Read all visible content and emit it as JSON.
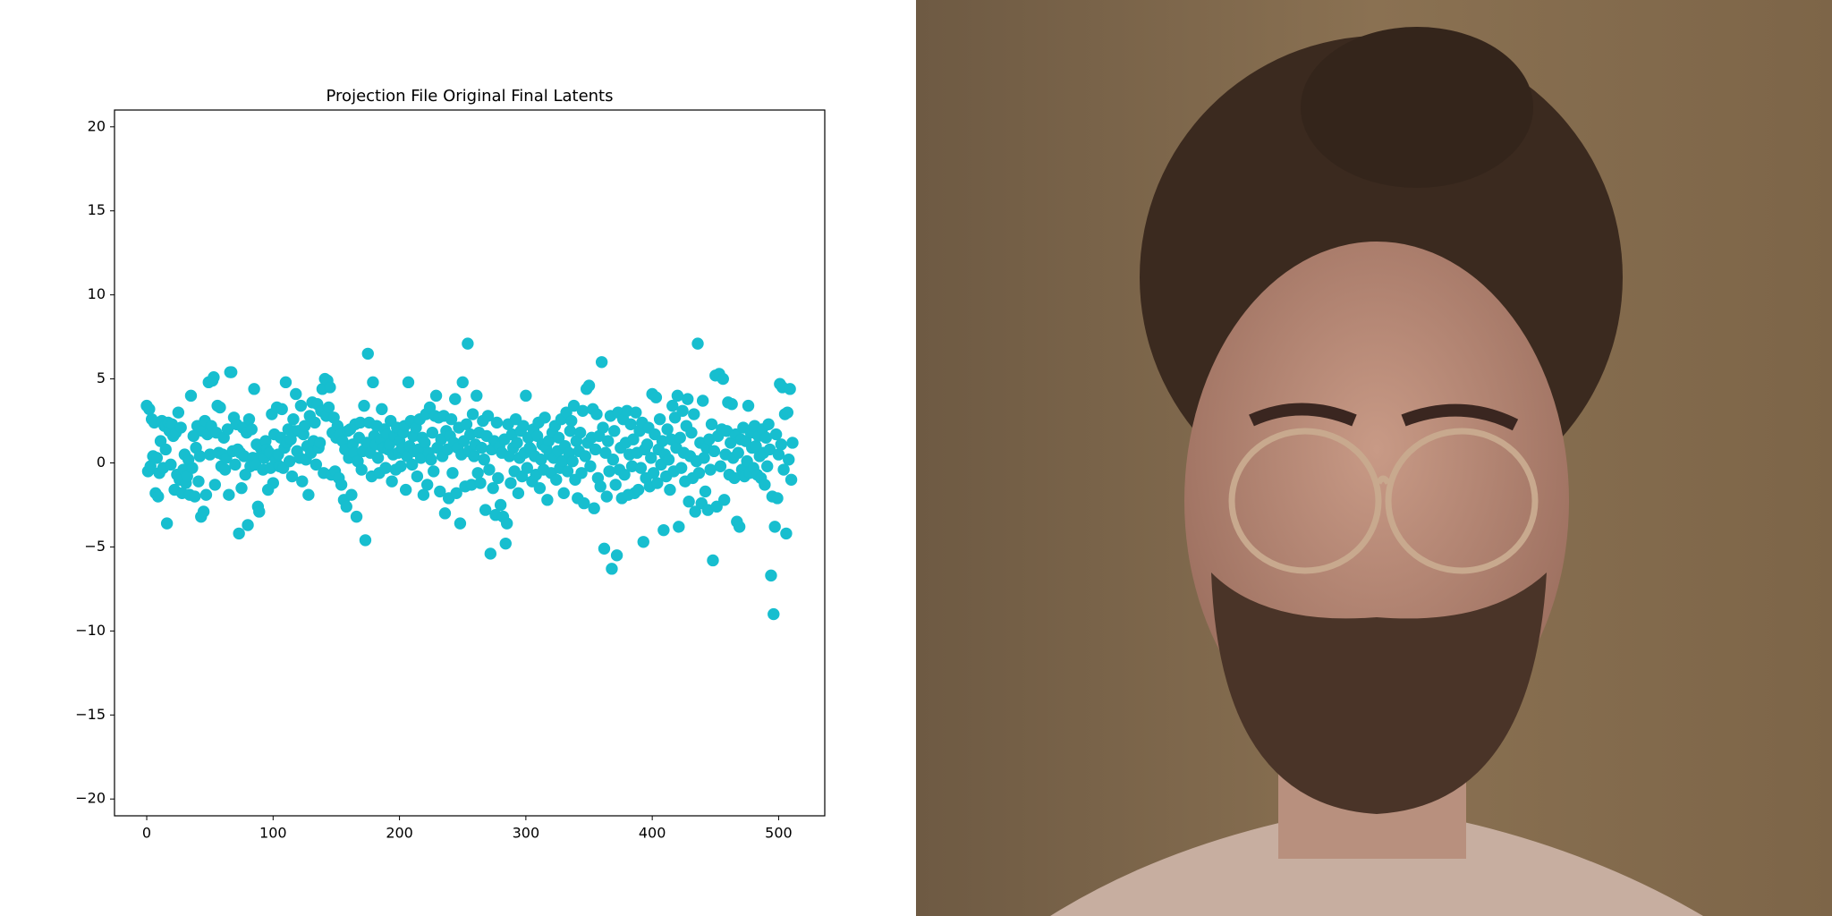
{
  "chart_data": {
    "type": "scatter",
    "title": "Projection File Original Final Latents",
    "color": "#17becf",
    "xlim": [
      -25.5,
      536.5
    ],
    "ylim": [
      -21,
      21
    ],
    "xticks": [
      0,
      100,
      200,
      300,
      400,
      500
    ],
    "yticks": [
      {
        "value": -20,
        "label": "−20"
      },
      {
        "value": -15,
        "label": "−15"
      },
      {
        "value": -10,
        "label": "−10"
      },
      {
        "value": -5,
        "label": "−5"
      },
      0,
      5,
      10,
      15,
      20
    ],
    "x": [
      0,
      1,
      2,
      3,
      4,
      5,
      6,
      7,
      8,
      9,
      10,
      11,
      12,
      13,
      14,
      15,
      16,
      17,
      18,
      19,
      20,
      21,
      22,
      23,
      24,
      25,
      26,
      27,
      28,
      29,
      30,
      31,
      32,
      33,
      34,
      35,
      36,
      37,
      38,
      39,
      40,
      41,
      42,
      43,
      44,
      45,
      46,
      47,
      48,
      49,
      50,
      51,
      52,
      53,
      54,
      55,
      56,
      57,
      58,
      59,
      60,
      61,
      62,
      63,
      64,
      65,
      66,
      67,
      68,
      69,
      70,
      71,
      72,
      73,
      74,
      75,
      76,
      77,
      78,
      79,
      80,
      81,
      82,
      83,
      84,
      85,
      86,
      87,
      88,
      89,
      90,
      91,
      92,
      93,
      94,
      95,
      96,
      97,
      98,
      99,
      100,
      101,
      102,
      103,
      104,
      105,
      106,
      107,
      108,
      109,
      110,
      111,
      112,
      113,
      114,
      115,
      116,
      117,
      118,
      119,
      120,
      121,
      122,
      123,
      124,
      125,
      126,
      127,
      128,
      129,
      130,
      131,
      132,
      133,
      134,
      135,
      136,
      137,
      138,
      139,
      140,
      141,
      142,
      143,
      144,
      145,
      146,
      147,
      148,
      149,
      150,
      151,
      152,
      153,
      154,
      155,
      156,
      157,
      158,
      159,
      160,
      161,
      162,
      163,
      164,
      165,
      166,
      167,
      168,
      169,
      170,
      171,
      172,
      173,
      174,
      175,
      176,
      177,
      178,
      179,
      180,
      181,
      182,
      183,
      184,
      185,
      186,
      187,
      188,
      189,
      190,
      191,
      192,
      193,
      194,
      195,
      196,
      197,
      198,
      199,
      200,
      201,
      202,
      203,
      204,
      205,
      206,
      207,
      208,
      209,
      210,
      211,
      212,
      213,
      214,
      215,
      216,
      217,
      218,
      219,
      220,
      221,
      222,
      223,
      224,
      225,
      226,
      227,
      228,
      229,
      230,
      231,
      232,
      233,
      234,
      235,
      236,
      237,
      238,
      239,
      240,
      241,
      242,
      243,
      244,
      245,
      246,
      247,
      248,
      249,
      250,
      251,
      252,
      253,
      254,
      255,
      256,
      257,
      258,
      259,
      260,
      261,
      262,
      263,
      264,
      265,
      266,
      267,
      268,
      269,
      270,
      271,
      272,
      273,
      274,
      275,
      276,
      277,
      278,
      279,
      280,
      281,
      282,
      283,
      284,
      285,
      286,
      287,
      288,
      289,
      290,
      291,
      292,
      293,
      294,
      295,
      296,
      297,
      298,
      299,
      300,
      301,
      302,
      303,
      304,
      305,
      306,
      307,
      308,
      309,
      310,
      311,
      312,
      313,
      314,
      315,
      316,
      317,
      318,
      319,
      320,
      321,
      322,
      323,
      324,
      325,
      326,
      327,
      328,
      329,
      330,
      331,
      332,
      333,
      334,
      335,
      336,
      337,
      338,
      339,
      340,
      341,
      342,
      343,
      344,
      345,
      346,
      347,
      348,
      349,
      350,
      351,
      352,
      353,
      354,
      355,
      356,
      357,
      358,
      359,
      360,
      361,
      362,
      363,
      364,
      365,
      366,
      367,
      368,
      369,
      370,
      371,
      372,
      373,
      374,
      375,
      376,
      377,
      378,
      379,
      380,
      381,
      382,
      383,
      384,
      385,
      386,
      387,
      388,
      389,
      390,
      391,
      392,
      393,
      394,
      395,
      396,
      397,
      398,
      399,
      400,
      401,
      402,
      403,
      404,
      405,
      406,
      407,
      408,
      409,
      410,
      411,
      412,
      413,
      414,
      415,
      416,
      417,
      418,
      419,
      420,
      421,
      422,
      423,
      424,
      425,
      426,
      427,
      428,
      429,
      430,
      431,
      432,
      433,
      434,
      435,
      436,
      437,
      438,
      439,
      440,
      441,
      442,
      443,
      444,
      445,
      446,
      447,
      448,
      449,
      450,
      451,
      452,
      453,
      454,
      455,
      456,
      457,
      458,
      459,
      460,
      461,
      462,
      463,
      464,
      465,
      466,
      467,
      468,
      469,
      470,
      471,
      472,
      473,
      474,
      475,
      476,
      477,
      478,
      479,
      480,
      481,
      482,
      483,
      484,
      485,
      486,
      487,
      488,
      489,
      490,
      491,
      492,
      493,
      494,
      495,
      496,
      497,
      498,
      499,
      500,
      501,
      502,
      503,
      504,
      505,
      506,
      507,
      508,
      509,
      510,
      511
    ],
    "values": [
      3.4,
      -0.5,
      3.2,
      -0.2,
      2.6,
      0.4,
      2.4,
      -1.8,
      0.3,
      -2.0,
      -0.6,
      1.3,
      2.5,
      -0.3,
      2.2,
      0.8,
      -3.6,
      2.4,
      1.9,
      -0.1,
      2.3,
      1.6,
      -1.6,
      1.8,
      -0.7,
      3.0,
      -1.0,
      2.1,
      -1.8,
      -0.4,
      0.5,
      -1.2,
      -0.8,
      0.2,
      -1.9,
      4.0,
      -0.3,
      1.6,
      -2.0,
      0.9,
      2.2,
      -1.1,
      0.4,
      -3.2,
      1.9,
      -2.9,
      2.5,
      -1.9,
      1.7,
      4.8,
      0.5,
      2.2,
      4.9,
      5.1,
      -1.3,
      1.8,
      3.4,
      0.6,
      3.3,
      -0.2,
      0.5,
      1.5,
      -0.4,
      0.3,
      2.0,
      -1.9,
      5.4,
      5.4,
      0.7,
      2.7,
      -0.1,
      2.3,
      0.8,
      -4.2,
      0.6,
      -1.5,
      2.1,
      0.4,
      -0.7,
      1.8,
      -3.7,
      2.6,
      -0.2,
      2.0,
      0.3,
      4.4,
      -0.1,
      1.1,
      -2.6,
      -2.9,
      0.9,
      0.5,
      -0.4,
      0.3,
      1.3,
      0.8,
      -1.6,
      0.6,
      -0.3,
      2.9,
      -1.2,
      1.7,
      0.2,
      3.3,
      0.5,
      -0.2,
      1.5,
      3.2,
      -0.3,
      0.9,
      4.8,
      1.2,
      2.0,
      0.1,
      1.4,
      -0.8,
      2.6,
      1.9,
      4.1,
      0.7,
      1.9,
      0.3,
      3.4,
      -1.1,
      1.7,
      2.2,
      0.2,
      1.0,
      -1.9,
      2.8,
      0.6,
      3.6,
      1.3,
      2.4,
      -0.1,
      3.5,
      0.9,
      1.2,
      3.1,
      4.4,
      -0.6,
      5.0,
      2.8,
      4.9,
      3.3,
      4.5,
      -0.7,
      1.8,
      2.7,
      -0.5,
      1.5,
      2.2,
      -0.9,
      1.7,
      -1.3,
      1.3,
      -2.2,
      0.8,
      -2.6,
      1.9,
      0.3,
      2.0,
      -1.9,
      1.1,
      0.6,
      2.3,
      -3.2,
      0.1,
      1.5,
      2.4,
      -0.4,
      0.7,
      3.4,
      -4.6,
      1.2,
      6.5,
      2.4,
      0.6,
      -0.8,
      4.8,
      1.6,
      1.1,
      2.2,
      0.3,
      -0.6,
      1.4,
      3.2,
      0.9,
      2.0,
      -0.3,
      1.7,
      0.8,
      1.1,
      2.5,
      -1.1,
      0.5,
      1.6,
      -0.4,
      2.1,
      0.6,
      1.3,
      -0.2,
      0.9,
      1.8,
      2.2,
      -1.6,
      0.4,
      4.8,
      1.0,
      2.5,
      -0.1,
      1.6,
      0.7,
      2.1,
      -0.8,
      0.8,
      2.6,
      0.3,
      1.5,
      -1.9,
      1.2,
      2.9,
      -1.3,
      0.6,
      3.3,
      0.2,
      1.8,
      -0.5,
      2.8,
      4.0,
      0.9,
      2.7,
      -1.7,
      1.4,
      0.4,
      2.8,
      -3.0,
      1.9,
      0.8,
      -2.1,
      1.6,
      2.6,
      -0.6,
      1.2,
      3.8,
      -1.8,
      0.9,
      2.1,
      -3.6,
      0.5,
      4.8,
      1.3,
      -1.4,
      2.3,
      7.1,
      0.7,
      1.7,
      -1.3,
      2.9,
      0.4,
      1.1,
      4.0,
      -0.6,
      1.8,
      -1.2,
      0.9,
      2.5,
      0.2,
      -2.8,
      1.6,
      2.8,
      -0.4,
      -5.4,
      0.8,
      -1.5,
      1.3,
      -3.1,
      2.4,
      -0.9,
      1.0,
      -2.5,
      0.6,
      -3.2,
      1.4,
      -4.8,
      -3.6,
      2.3,
      0.4,
      -1.2,
      1.7,
      0.9,
      -0.5,
      2.6,
      1.2,
      -1.8,
      0.3,
      1.9,
      -0.8,
      2.2,
      0.6,
      4.0,
      -0.3,
      1.5,
      0.9,
      0.8,
      -1.1,
      2.0,
      0.4,
      -0.7,
      1.6,
      2.4,
      -1.5,
      0.2,
      1.1,
      -0.4,
      2.7,
      0.9,
      -2.2,
      1.3,
      0.5,
      -0.6,
      1.8,
      0.3,
      2.2,
      -1.0,
      0.7,
      1.5,
      -0.3,
      2.6,
      0.1,
      -1.8,
      1.0,
      3.0,
      -0.5,
      0.6,
      1.9,
      2.5,
      0.1,
      3.4,
      -1.0,
      1.3,
      -2.1,
      0.7,
      1.8,
      -0.6,
      3.1,
      -2.4,
      0.4,
      4.4,
      1.2,
      4.6,
      -0.2,
      1.5,
      3.2,
      -2.7,
      0.8,
      2.9,
      -0.9,
      1.6,
      -1.4,
      6.0,
      2.1,
      -5.1,
      0.6,
      -2.0,
      1.3,
      -0.5,
      2.8,
      -6.3,
      0.2,
      1.9,
      -1.3,
      -5.5,
      3.0,
      -0.4,
      0.9,
      -2.1,
      2.6,
      -0.7,
      1.2,
      3.1,
      -1.9,
      0.5,
      2.3,
      -0.2,
      1.4,
      -1.8,
      3.0,
      0.6,
      -1.6,
      1.9,
      -0.3,
      2.4,
      -4.7,
      0.8,
      -0.9,
      1.1,
      2.1,
      -1.4,
      0.3,
      4.1,
      -0.6,
      1.7,
      3.9,
      -1.2,
      0.8,
      2.6,
      -0.1,
      1.3,
      -4.0,
      0.5,
      -0.8,
      2.0,
      0.2,
      -1.6,
      1.4,
      3.4,
      -0.5,
      2.7,
      0.9,
      4.0,
      -3.8,
      1.5,
      -0.3,
      3.1,
      0.6,
      -1.1,
      2.2,
      3.8,
      -2.3,
      0.4,
      1.8,
      -0.9,
      2.9,
      -2.9,
      0.1,
      7.1,
      -0.6,
      1.2,
      -2.4,
      3.7,
      0.3,
      -1.7,
      0.9,
      -2.8,
      1.4,
      -0.4,
      2.3,
      -5.8,
      0.7,
      5.2,
      -2.6,
      1.6,
      5.3,
      -0.2,
      2.0,
      5.0,
      -2.2,
      0.5,
      1.9,
      3.6,
      -0.7,
      1.2,
      3.5,
      0.3,
      -0.9,
      1.7,
      -3.5,
      0.6,
      -3.8,
      1.4,
      -0.4,
      2.1,
      -0.8,
      1.3,
      0.1,
      3.4,
      -0.6,
      1.8,
      0.9,
      -0.3,
      2.2,
      1.0,
      -0.7,
      1.6,
      0.4,
      -0.9,
      2.0,
      0.6,
      -1.3,
      1.5,
      -0.2,
      2.3,
      0.8,
      -6.7,
      -2.0,
      -9.0,
      -3.8,
      1.7,
      -2.1,
      0.5,
      4.7,
      1.1,
      4.5,
      -0.4,
      2.9,
      -4.2,
      3.0,
      0.2,
      4.4,
      -1.0,
      1.2
    ]
  }
}
